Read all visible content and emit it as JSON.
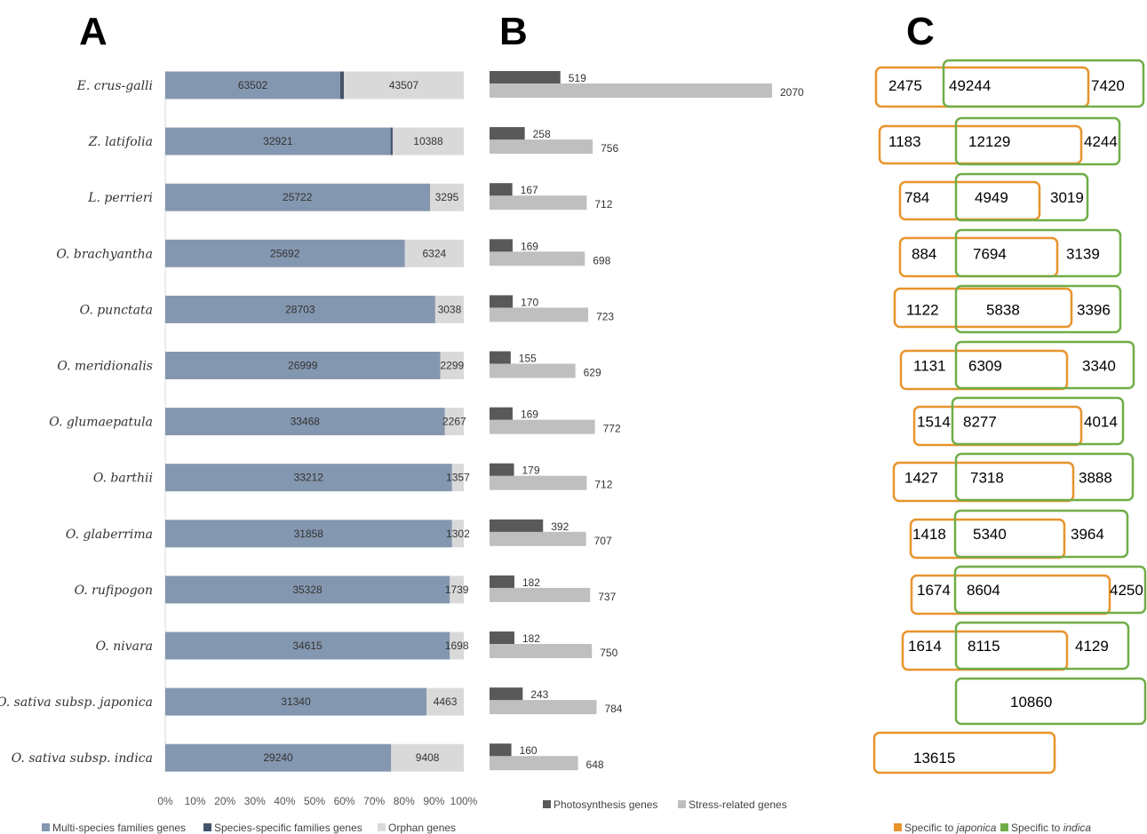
{
  "panels": {
    "a": "A",
    "b": "B",
    "c": "C"
  },
  "colors": {
    "multi": "#8497b0",
    "species_specific": "#44546a",
    "orphan": "#d9d9d9",
    "photosynthesis": "#595959",
    "stress": "#bfbfbf",
    "japonica": "#e8942c",
    "indica": "#70ad47"
  },
  "chart_data": [
    {
      "type": "bar",
      "orientation": "horizontal",
      "stacked": "percent",
      "panel": "A",
      "categories": [
        "E. crus-galli",
        "Z. latifolia",
        "L. perrieri",
        "O. brachyantha",
        "O. punctata",
        "O. meridionalis",
        "O. glumaepatula",
        "O. barthii",
        "O. glaberrima",
        "O. rufipogon",
        "O. nivara",
        "O. sativa subsp. japonica",
        "O. sativa subsp. indica"
      ],
      "series": [
        {
          "name": "Multi-species families genes",
          "values": [
            63502,
            32921,
            25722,
            25692,
            28703,
            26999,
            33468,
            33212,
            31858,
            35328,
            34615,
            31340,
            29240
          ]
        },
        {
          "name": "Species-specific families genes",
          "values": [
            1300,
            300,
            40,
            20,
            20,
            20,
            20,
            20,
            20,
            20,
            20,
            20,
            20
          ]
        },
        {
          "name": "Orphan genes",
          "values": [
            43507,
            10388,
            3295,
            6324,
            3038,
            2299,
            2267,
            1357,
            1302,
            1739,
            1698,
            4463,
            9408
          ]
        }
      ],
      "label_series": [
        "Multi-species families genes",
        "Orphan genes"
      ],
      "xticks": [
        "0%",
        "10%",
        "20%",
        "30%",
        "40%",
        "50%",
        "60%",
        "70%",
        "80%",
        "90%",
        "100%"
      ],
      "legend_position": "bottom"
    },
    {
      "type": "bar",
      "orientation": "horizontal",
      "panel": "B",
      "categories": [
        "E. crus-galli",
        "Z. latifolia",
        "L. perrieri",
        "O. brachyantha",
        "O. punctata",
        "O. meridionalis",
        "O. glumaepatula",
        "O. barthii",
        "O. glaberrima",
        "O. rufipogon",
        "O. nivara",
        "O. sativa subsp. japonica",
        "O. sativa subsp. indica"
      ],
      "series": [
        {
          "name": "Photosynthesis genes",
          "values": [
            519,
            258,
            167,
            169,
            170,
            155,
            169,
            179,
            392,
            182,
            182,
            243,
            160
          ]
        },
        {
          "name": "Stress-related genes",
          "values": [
            2070,
            756,
            712,
            698,
            723,
            629,
            772,
            712,
            707,
            737,
            750,
            784,
            648
          ]
        }
      ],
      "legend_position": "bottom"
    },
    {
      "type": "venn",
      "panel": "C",
      "sets": [
        "Specific to japonica",
        "Specific to indica"
      ],
      "rows": [
        {
          "japonica_only": "2475",
          "shared": "49244",
          "indica_only": "7420"
        },
        {
          "japonica_only": "1183",
          "shared": "12129",
          "indica_only": "4244"
        },
        {
          "japonica_only": "784",
          "shared": "4949",
          "indica_only": "3019"
        },
        {
          "japonica_only": "884",
          "shared": "7694",
          "indica_only": "3139"
        },
        {
          "japonica_only": "1122",
          "shared": "5838",
          "indica_only": "3396"
        },
        {
          "japonica_only": "1131",
          "shared": "6309",
          "indica_only": "3340"
        },
        {
          "japonica_only": "1514",
          "shared": "8277",
          "indica_only": "4014"
        },
        {
          "japonica_only": "1427",
          "shared": "7318",
          "indica_only": "3888"
        },
        {
          "japonica_only": "1418",
          "shared": "5340",
          "indica_only": "3964"
        },
        {
          "japonica_only": "1674",
          "shared": "8604",
          "indica_only": "4250"
        },
        {
          "japonica_only": "1614",
          "shared": "8115",
          "indica_only": "4129"
        },
        {
          "japonica_only": "",
          "shared": "",
          "indica_only": "10860"
        },
        {
          "japonica_only": "13615",
          "shared": "",
          "indica_only": ""
        }
      ],
      "legend": [
        {
          "prefix": "Specific to ",
          "italic": "japonica",
          "set": "japonica"
        },
        {
          "prefix": "Specific to ",
          "italic": "indica",
          "set": "indica"
        }
      ],
      "legend_position": "bottom"
    }
  ]
}
